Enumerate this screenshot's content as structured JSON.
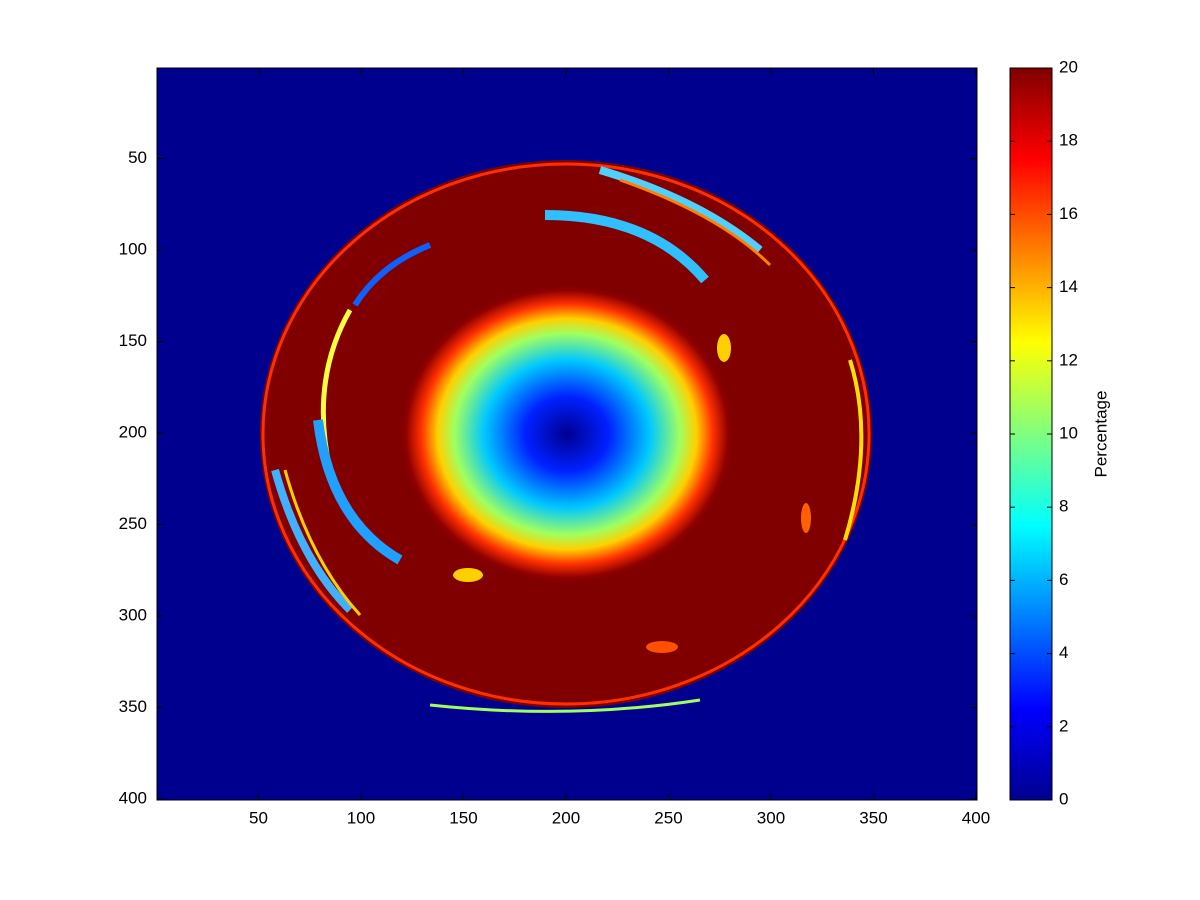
{
  "chart_data": {
    "type": "image",
    "xlim": [
      0.5,
      400.5
    ],
    "xticks": [
      50,
      100,
      150,
      200,
      250,
      300,
      350,
      400
    ],
    "ylim": [
      0.5,
      400.5
    ],
    "yticks": [
      50,
      100,
      150,
      200,
      250,
      300,
      350,
      400
    ],
    "ydir": "reverse",
    "colormap": "jet",
    "colorbar": {
      "label": "Percentage",
      "clim": [
        0,
        20
      ],
      "ticks": [
        0,
        2,
        4,
        6,
        8,
        10,
        12,
        14,
        16,
        18,
        20
      ]
    }
  }
}
